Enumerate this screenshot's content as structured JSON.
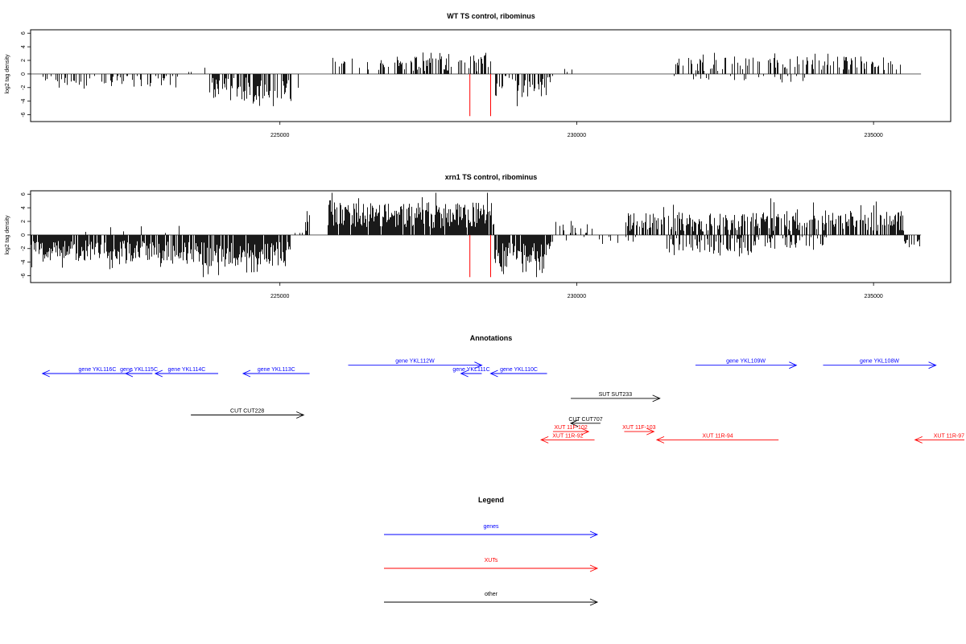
{
  "colors": {
    "gene": "#0000ff",
    "xut": "#ff0000",
    "other": "#000000",
    "bars": "#000000",
    "marker": "#ff0000",
    "axis": "#000000"
  },
  "chart_data": [
    {
      "type": "bar",
      "title": "WT TS control, ribominus",
      "ylabel": "log2 tag density",
      "xlim": [
        220800,
        236300
      ],
      "ylim": [
        -7,
        6.5
      ],
      "yticks": [
        -6,
        -4,
        -2,
        0,
        2,
        4,
        6
      ],
      "ytick_labels": [
        "-6",
        "-4",
        "-2",
        "0",
        "2",
        "4",
        "6"
      ],
      "xticks": [
        225000,
        230000,
        235000
      ],
      "xtick_labels": [
        "225000",
        "230000",
        "235000"
      ],
      "data_range": [
        220800,
        235800
      ],
      "markers": [
        228200,
        228550
      ],
      "segments": [
        {
          "from": 220800,
          "to": 221000,
          "sign": 1,
          "mag": 1.0,
          "density": 0.03,
          "bias": 0.6
        },
        {
          "from": 221000,
          "to": 223400,
          "sign": -1,
          "mag": 2.0,
          "density": 0.35,
          "bias": 0.0
        },
        {
          "from": 223400,
          "to": 223800,
          "sign": 1,
          "mag": 1.2,
          "density": 0.05,
          "bias": 0.0
        },
        {
          "from": 223800,
          "to": 225200,
          "sign": -1,
          "mag": 3.5,
          "density": 0.6,
          "bias": 0.5
        },
        {
          "from": 225200,
          "to": 225500,
          "sign": -1,
          "mag": 1.5,
          "density": 0.1,
          "bias": 0.0
        },
        {
          "from": 225800,
          "to": 227200,
          "sign": 1,
          "mag": 1.8,
          "density": 0.25,
          "bias": 0.6
        },
        {
          "from": 227200,
          "to": 228600,
          "sign": 1,
          "mag": 3.0,
          "density": 0.55,
          "bias": 0.3
        },
        {
          "from": 228600,
          "to": 229600,
          "sign": -1,
          "mag": 3.2,
          "density": 0.45,
          "bias": 0.2
        },
        {
          "from": 229600,
          "to": 230100,
          "sign": 1,
          "mag": 1.2,
          "density": 0.05,
          "bias": 0.0
        },
        {
          "from": 231600,
          "to": 233200,
          "sign": 1,
          "mag": 2.0,
          "density": 0.3,
          "bias": 0.4
        },
        {
          "from": 231600,
          "to": 233200,
          "sign": -1,
          "mag": 1.2,
          "density": 0.15,
          "bias": 0.0
        },
        {
          "from": 233200,
          "to": 235500,
          "sign": 1,
          "mag": 2.2,
          "density": 0.35,
          "bias": 0.4
        },
        {
          "from": 233200,
          "to": 234000,
          "sign": -1,
          "mag": 1.6,
          "density": 0.15,
          "bias": 0.0
        }
      ]
    },
    {
      "type": "bar",
      "title": "xrn1 TS control, ribominus",
      "ylabel": "log2 tag density",
      "xlim": [
        220800,
        236300
      ],
      "ylim": [
        -7,
        6.5
      ],
      "yticks": [
        -6,
        -4,
        -2,
        0,
        2,
        4,
        6
      ],
      "ytick_labels": [
        "-6",
        "-4",
        "-2",
        "0",
        "2",
        "4",
        "6"
      ],
      "xticks": [
        225000,
        230000,
        235000
      ],
      "xtick_labels": [
        "225000",
        "230000",
        "235000"
      ],
      "data_range": [
        220800,
        235800
      ],
      "markers": [
        228200,
        228550
      ],
      "segments": [
        {
          "from": 220800,
          "to": 223400,
          "sign": -1,
          "mag": 3.0,
          "density": 0.9,
          "bias": 0.8
        },
        {
          "from": 221500,
          "to": 223400,
          "sign": 1,
          "mag": 1.4,
          "density": 0.08,
          "bias": 0.0
        },
        {
          "from": 223400,
          "to": 225200,
          "sign": -1,
          "mag": 3.8,
          "density": 0.9,
          "bias": 1.0
        },
        {
          "from": 225200,
          "to": 225500,
          "sign": 1,
          "mag": 2.5,
          "density": 0.3,
          "bias": 0.0
        },
        {
          "from": 225800,
          "to": 228600,
          "sign": 1,
          "mag": 3.8,
          "density": 0.95,
          "bias": 1.0
        },
        {
          "from": 228600,
          "to": 229600,
          "sign": -1,
          "mag": 3.8,
          "density": 0.9,
          "bias": 1.0
        },
        {
          "from": 229600,
          "to": 230300,
          "sign": 1,
          "mag": 2.2,
          "density": 0.3,
          "bias": 0.0
        },
        {
          "from": 229800,
          "to": 231000,
          "sign": -1,
          "mag": 1.2,
          "density": 0.1,
          "bias": 0.0
        },
        {
          "from": 230800,
          "to": 233000,
          "sign": 1,
          "mag": 2.8,
          "density": 0.6,
          "bias": 0.5
        },
        {
          "from": 231500,
          "to": 233000,
          "sign": -1,
          "mag": 2.5,
          "density": 0.5,
          "bias": 0.4
        },
        {
          "from": 233000,
          "to": 235500,
          "sign": 1,
          "mag": 3.0,
          "density": 0.7,
          "bias": 0.6
        },
        {
          "from": 233000,
          "to": 234200,
          "sign": -1,
          "mag": 2.0,
          "density": 0.35,
          "bias": 0.0
        },
        {
          "from": 235500,
          "to": 235800,
          "sign": -1,
          "mag": 1.6,
          "density": 0.4,
          "bias": 0.3
        }
      ]
    }
  ],
  "annotations": {
    "title": "Annotations",
    "xlim": [
      220800,
      236300
    ],
    "features": [
      {
        "label": "gene YKL116C",
        "class": "gene",
        "start": 221000,
        "end": 222850,
        "strand": "-",
        "row": 0
      },
      {
        "label": "gene YKL115C",
        "class": "gene",
        "start": 222400,
        "end": 222850,
        "strand": "-",
        "row": 0
      },
      {
        "label": "gene YKL114C",
        "class": "gene",
        "start": 222900,
        "end": 223960,
        "strand": "-",
        "row": 0
      },
      {
        "label": "gene YKL113C",
        "class": "gene",
        "start": 224380,
        "end": 225500,
        "strand": "-",
        "row": 0
      },
      {
        "label": "gene YKL112W",
        "class": "gene",
        "start": 226150,
        "end": 228400,
        "strand": "+",
        "row": -1
      },
      {
        "label": "gene YKL111C",
        "class": "gene",
        "start": 228050,
        "end": 228400,
        "strand": "-",
        "row": 0
      },
      {
        "label": "gene YKL110C",
        "class": "gene",
        "start": 228550,
        "end": 229500,
        "strand": "-",
        "row": 0
      },
      {
        "label": "gene YKL109W",
        "class": "gene",
        "start": 232000,
        "end": 233700,
        "strand": "+",
        "row": -1
      },
      {
        "label": "gene YKL108W",
        "class": "gene",
        "start": 234150,
        "end": 236050,
        "strand": "+",
        "row": -1
      },
      {
        "label": "CUT CUT228",
        "class": "other",
        "start": 223500,
        "end": 225400,
        "strand": "+",
        "row": 5
      },
      {
        "label": "SUT SUT233",
        "class": "other",
        "start": 229900,
        "end": 231400,
        "strand": "+",
        "row": 3
      },
      {
        "label": "CUT CUT707",
        "class": "other",
        "start": 229900,
        "end": 230400,
        "strand": "-",
        "row": 6
      },
      {
        "label": "XUT 11F-102",
        "class": "xut",
        "start": 229600,
        "end": 230200,
        "strand": "+",
        "row": 7
      },
      {
        "label": "XUT 11F-103",
        "class": "xut",
        "start": 230800,
        "end": 231300,
        "strand": "+",
        "row": 7
      },
      {
        "label": "XUT 11R-92",
        "class": "xut",
        "start": 229400,
        "end": 230300,
        "strand": "-",
        "row": 8
      },
      {
        "label": "XUT 11R-94",
        "class": "xut",
        "start": 231350,
        "end": 233400,
        "strand": "-",
        "row": 8
      },
      {
        "label": "XUT 11R-97",
        "class": "xut",
        "start": 235700,
        "end": 236600,
        "strand": "-",
        "row": 8
      }
    ]
  },
  "legend": {
    "title": "Legend",
    "items": [
      {
        "label": "genes",
        "class": "gene"
      },
      {
        "label": "XUTs",
        "class": "xut"
      },
      {
        "label": "other",
        "class": "other"
      }
    ]
  }
}
